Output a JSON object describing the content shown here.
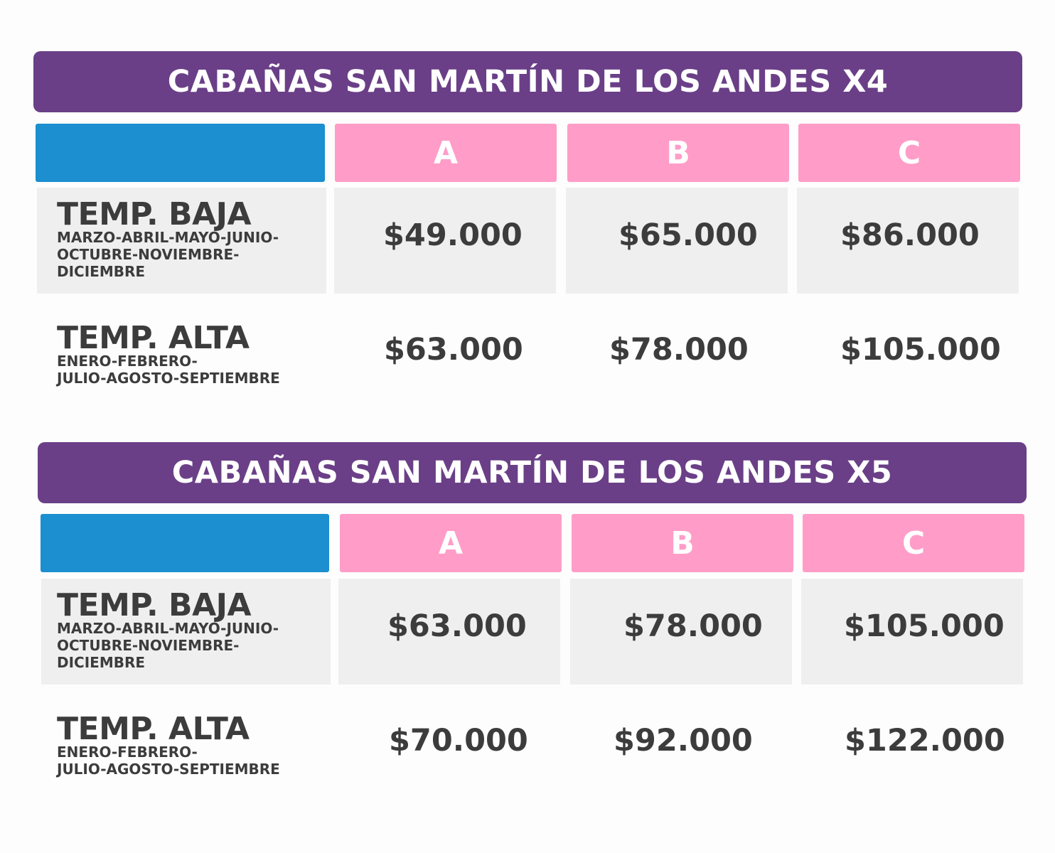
{
  "colors": {
    "banner": "#6a3f87",
    "blue": "#1b8fcf",
    "pink": "#ff9dc8",
    "grey_row": "#efefef",
    "text": "#3c3c3c"
  },
  "columns": [
    "A",
    "B",
    "C"
  ],
  "tables": [
    {
      "title": "CABAÑAS SAN MARTÍN DE LOS ANDES X4",
      "rows": [
        {
          "season": "TEMP. BAJA",
          "months": "MARZO-ABRIL-MAYO-JUNIO-\nOCTUBRE-NOVIEMBRE-\nDICIEMBRE",
          "prices": [
            "$49.000",
            "$65.000",
            "$86.000"
          ]
        },
        {
          "season": "TEMP. ALTA",
          "months": "ENERO-FEBRERO-\nJULIO-AGOSTO-SEPTIEMBRE",
          "prices": [
            "$63.000",
            "$78.000",
            "$105.000"
          ]
        }
      ]
    },
    {
      "title": "CABAÑAS SAN MARTÍN DE LOS ANDES X5",
      "rows": [
        {
          "season": "TEMP. BAJA",
          "months": "MARZO-ABRIL-MAYO-JUNIO-\nOCTUBRE-NOVIEMBRE-\nDICIEMBRE",
          "prices": [
            "$63.000",
            "$78.000",
            "$105.000"
          ]
        },
        {
          "season": "TEMP. ALTA",
          "months": "ENERO-FEBRERO-\nJULIO-AGOSTO-SEPTIEMBRE",
          "prices": [
            "$70.000",
            "$92.000",
            "$122.000"
          ]
        }
      ]
    }
  ]
}
